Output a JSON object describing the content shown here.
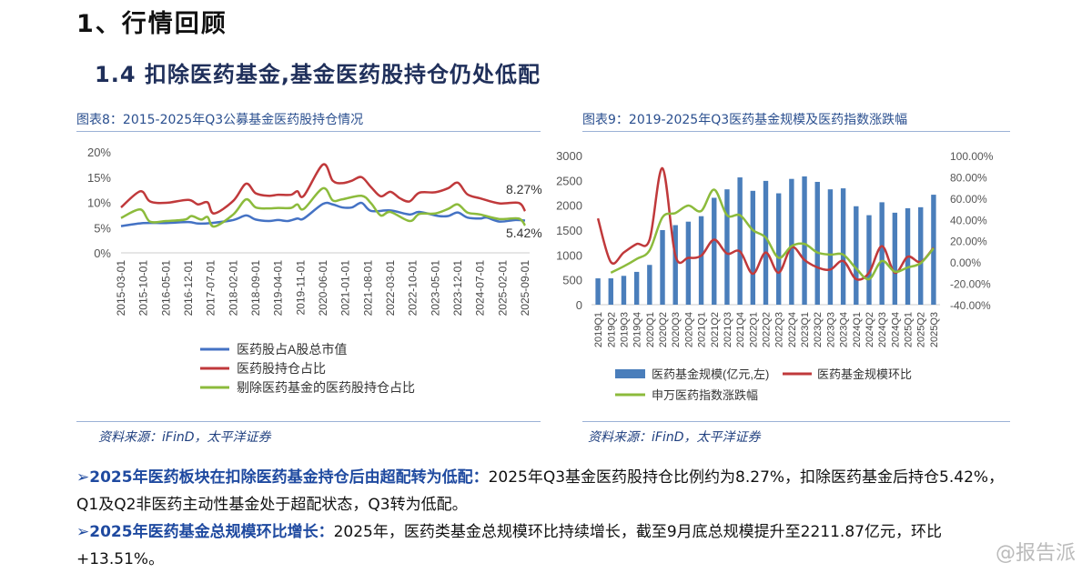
{
  "header": {
    "title": "1、行情回顾",
    "subtitle": "1.4 扣除医药基金,基金医药股持仓仍处低配"
  },
  "chart1_title": "图表8：2015-2025年Q3公募基金医药股持仓情况",
  "chart2_title": "图表9：2019-2025年Q3医药基金规模及医药指数涨跌幅",
  "source1": "资料来源：iFinD，太平洋证券",
  "source2": "资料来源：iFinD，太平洋证券",
  "chart_data": [
    {
      "type": "line",
      "ylim": [
        0,
        20
      ],
      "yticks": [
        "0%",
        "5%",
        "10%",
        "15%",
        "20%"
      ],
      "x_unit": "months since 2015-03",
      "xticks": [
        "2015-03-01",
        "2015-10-01",
        "2016-05-01",
        "2016-12-01",
        "2017-07-01",
        "2018-02-01",
        "2018-09-01",
        "2019-04-01",
        "2019-11-01",
        "2020-06-01",
        "2021-01-01",
        "2021-08-01",
        "2022-03-01",
        "2022-10-01",
        "2023-05-01",
        "2023-12-01",
        "2024-07-01",
        "2025-02-01",
        "2025-09-01"
      ],
      "annotations": [
        "8.27%",
        "5.42%"
      ],
      "series": [
        {
          "name": "医药股占A股总市值",
          "color": "#4472c4",
          "points": [
            [
              0,
              5.3
            ],
            [
              7,
              5.9
            ],
            [
              14,
              5.9
            ],
            [
              21,
              6.1
            ],
            [
              24,
              5.8
            ],
            [
              28,
              5.9
            ],
            [
              35,
              6.5
            ],
            [
              39,
              7.4
            ],
            [
              42,
              6.6
            ],
            [
              46,
              6.3
            ],
            [
              49,
              6.5
            ],
            [
              52,
              6.3
            ],
            [
              55,
              6.8
            ],
            [
              57,
              6.8
            ],
            [
              63,
              9.7
            ],
            [
              66,
              9.6
            ],
            [
              69,
              9.0
            ],
            [
              72,
              9.0
            ],
            [
              75,
              9.9
            ],
            [
              78,
              8.3
            ],
            [
              84,
              8.4
            ],
            [
              90,
              7.6
            ],
            [
              93,
              8.1
            ],
            [
              99,
              7.3
            ],
            [
              102,
              7.3
            ],
            [
              105,
              8.0
            ],
            [
              108,
              7.0
            ],
            [
              112,
              6.8
            ],
            [
              114,
              7.0
            ],
            [
              118,
              6.2
            ],
            [
              123,
              6.5
            ],
            [
              126,
              6.4
            ]
          ]
        },
        {
          "name": "医药股持仓占比",
          "color": "#c0393b",
          "points": [
            [
              0,
              9
            ],
            [
              6,
              12.2
            ],
            [
              9,
              10.2
            ],
            [
              14,
              9.9
            ],
            [
              21,
              10.5
            ],
            [
              24,
              9.6
            ],
            [
              27,
              10
            ],
            [
              29,
              7.8
            ],
            [
              35,
              10.3
            ],
            [
              39,
              13.7
            ],
            [
              42,
              11.8
            ],
            [
              46,
              11.3
            ],
            [
              49,
              11.5
            ],
            [
              53,
              11.5
            ],
            [
              55,
              12.2
            ],
            [
              57,
              11.3
            ],
            [
              63,
              17.5
            ],
            [
              66,
              14.3
            ],
            [
              69,
              13.8
            ],
            [
              72,
              14.3
            ],
            [
              75,
              15
            ],
            [
              78,
              13
            ],
            [
              81,
              11.2
            ],
            [
              84,
              12.1
            ],
            [
              87,
              10.8
            ],
            [
              90,
              10.2
            ],
            [
              93,
              11.9
            ],
            [
              98,
              12
            ],
            [
              102,
              12.8
            ],
            [
              105,
              13.9
            ],
            [
              108,
              11.6
            ],
            [
              112,
              10.8
            ],
            [
              118,
              9.8
            ],
            [
              124,
              9.9
            ],
            [
              126,
              8.27
            ]
          ]
        },
        {
          "name": "剔除医药基金的医药股持仓占比",
          "color": "#8cbb3c",
          "points": [
            [
              0,
              6.9
            ],
            [
              6,
              8.6
            ],
            [
              9,
              6.2
            ],
            [
              14,
              6.3
            ],
            [
              20,
              6.6
            ],
            [
              22,
              7.3
            ],
            [
              25,
              6.6
            ],
            [
              27,
              7.1
            ],
            [
              29,
              5.2
            ],
            [
              35,
              7.6
            ],
            [
              39,
              10.6
            ],
            [
              42,
              9.0
            ],
            [
              46,
              8.8
            ],
            [
              49,
              8.9
            ],
            [
              53,
              8.9
            ],
            [
              55,
              9.6
            ],
            [
              57,
              8.7
            ],
            [
              63,
              12.8
            ],
            [
              66,
              10.4
            ],
            [
              69,
              10.6
            ],
            [
              75,
              11.3
            ],
            [
              78,
              9.8
            ],
            [
              81,
              7.4
            ],
            [
              84,
              8.1
            ],
            [
              90,
              6.3
            ],
            [
              93,
              7.7
            ],
            [
              98,
              7.8
            ],
            [
              102,
              8.7
            ],
            [
              105,
              9.6
            ],
            [
              108,
              8.0
            ],
            [
              112,
              7.6
            ],
            [
              118,
              6.7
            ],
            [
              124,
              6.8
            ],
            [
              126,
              5.42
            ]
          ]
        }
      ]
    },
    {
      "type": "bar+line",
      "ylim": [
        0,
        3000
      ],
      "y2lim": [
        -40,
        100
      ],
      "yticks": [
        "0",
        "500",
        "1000",
        "1500",
        "2000",
        "2500",
        "3000"
      ],
      "y2ticks": [
        "-40.00%",
        "-20.00%",
        "0.00%",
        "20.00%",
        "40.00%",
        "60.00%",
        "80.00%",
        "100.00%"
      ],
      "categories": [
        "2019Q1",
        "2019Q2",
        "2019Q3",
        "2019Q4",
        "2020Q1",
        "2020Q2",
        "2020Q3",
        "2020Q4",
        "2021Q1",
        "2021Q2",
        "2021Q3",
        "2021Q4",
        "2022Q1",
        "2022Q2",
        "2022Q3",
        "2022Q4",
        "2023Q1",
        "2023Q2",
        "2023Q3",
        "2023Q4",
        "2024Q1",
        "2024Q2",
        "2024Q3",
        "2024Q4",
        "2025Q1",
        "2025Q2",
        "2025Q3"
      ],
      "series": [
        {
          "name": "医药基金规模(亿元,左)",
          "type": "bar",
          "color": "#4a7ebb",
          "values": [
            530,
            530,
            580,
            660,
            800,
            1500,
            1600,
            1670,
            1780,
            2150,
            2320,
            2560,
            2290,
            2490,
            2240,
            2530,
            2580,
            2470,
            2320,
            2340,
            1980,
            1800,
            2060,
            1850,
            1940,
            1960,
            2212
          ]
        },
        {
          "name": "医药基金规模环比",
          "type": "line",
          "axis": "right",
          "color": "#c0393b",
          "values": [
            41,
            0,
            9,
            17,
            21,
            88,
            6,
            4,
            6,
            21,
            8,
            10,
            -11,
            9,
            -10,
            14,
            2,
            -5,
            -7,
            1,
            -16,
            -10,
            15,
            -10,
            5,
            0,
            13.51
          ]
        },
        {
          "name": "申万医药指数涨跌幅",
          "type": "line",
          "axis": "right",
          "color": "#8cbb3c",
          "values": [
            null,
            -10,
            -4,
            3,
            11,
            42,
            46,
            53,
            48,
            68,
            44,
            44,
            30,
            23,
            4,
            15,
            17,
            9,
            7,
            7,
            -6,
            -16,
            1,
            -9,
            -5,
            -1,
            13
          ]
        }
      ]
    }
  ],
  "bullets": [
    {
      "head": "2025年医药板块在扣除医药基金持仓后由超配转为低配：",
      "body": "2025年Q3基金医药股持仓比例约为8.27%，扣除医药基金后持仓5.42%，Q1及Q2非医药主动性基金处于超配状态，Q3转为低配。"
    },
    {
      "head": "2025年医药基金总规模环比增长：",
      "body": "2025年，医药类基金总规模环比持续增长，截至9月底总规模提升至2211.87亿元，环比+13.51%。"
    }
  ],
  "watermark": "@报告派"
}
